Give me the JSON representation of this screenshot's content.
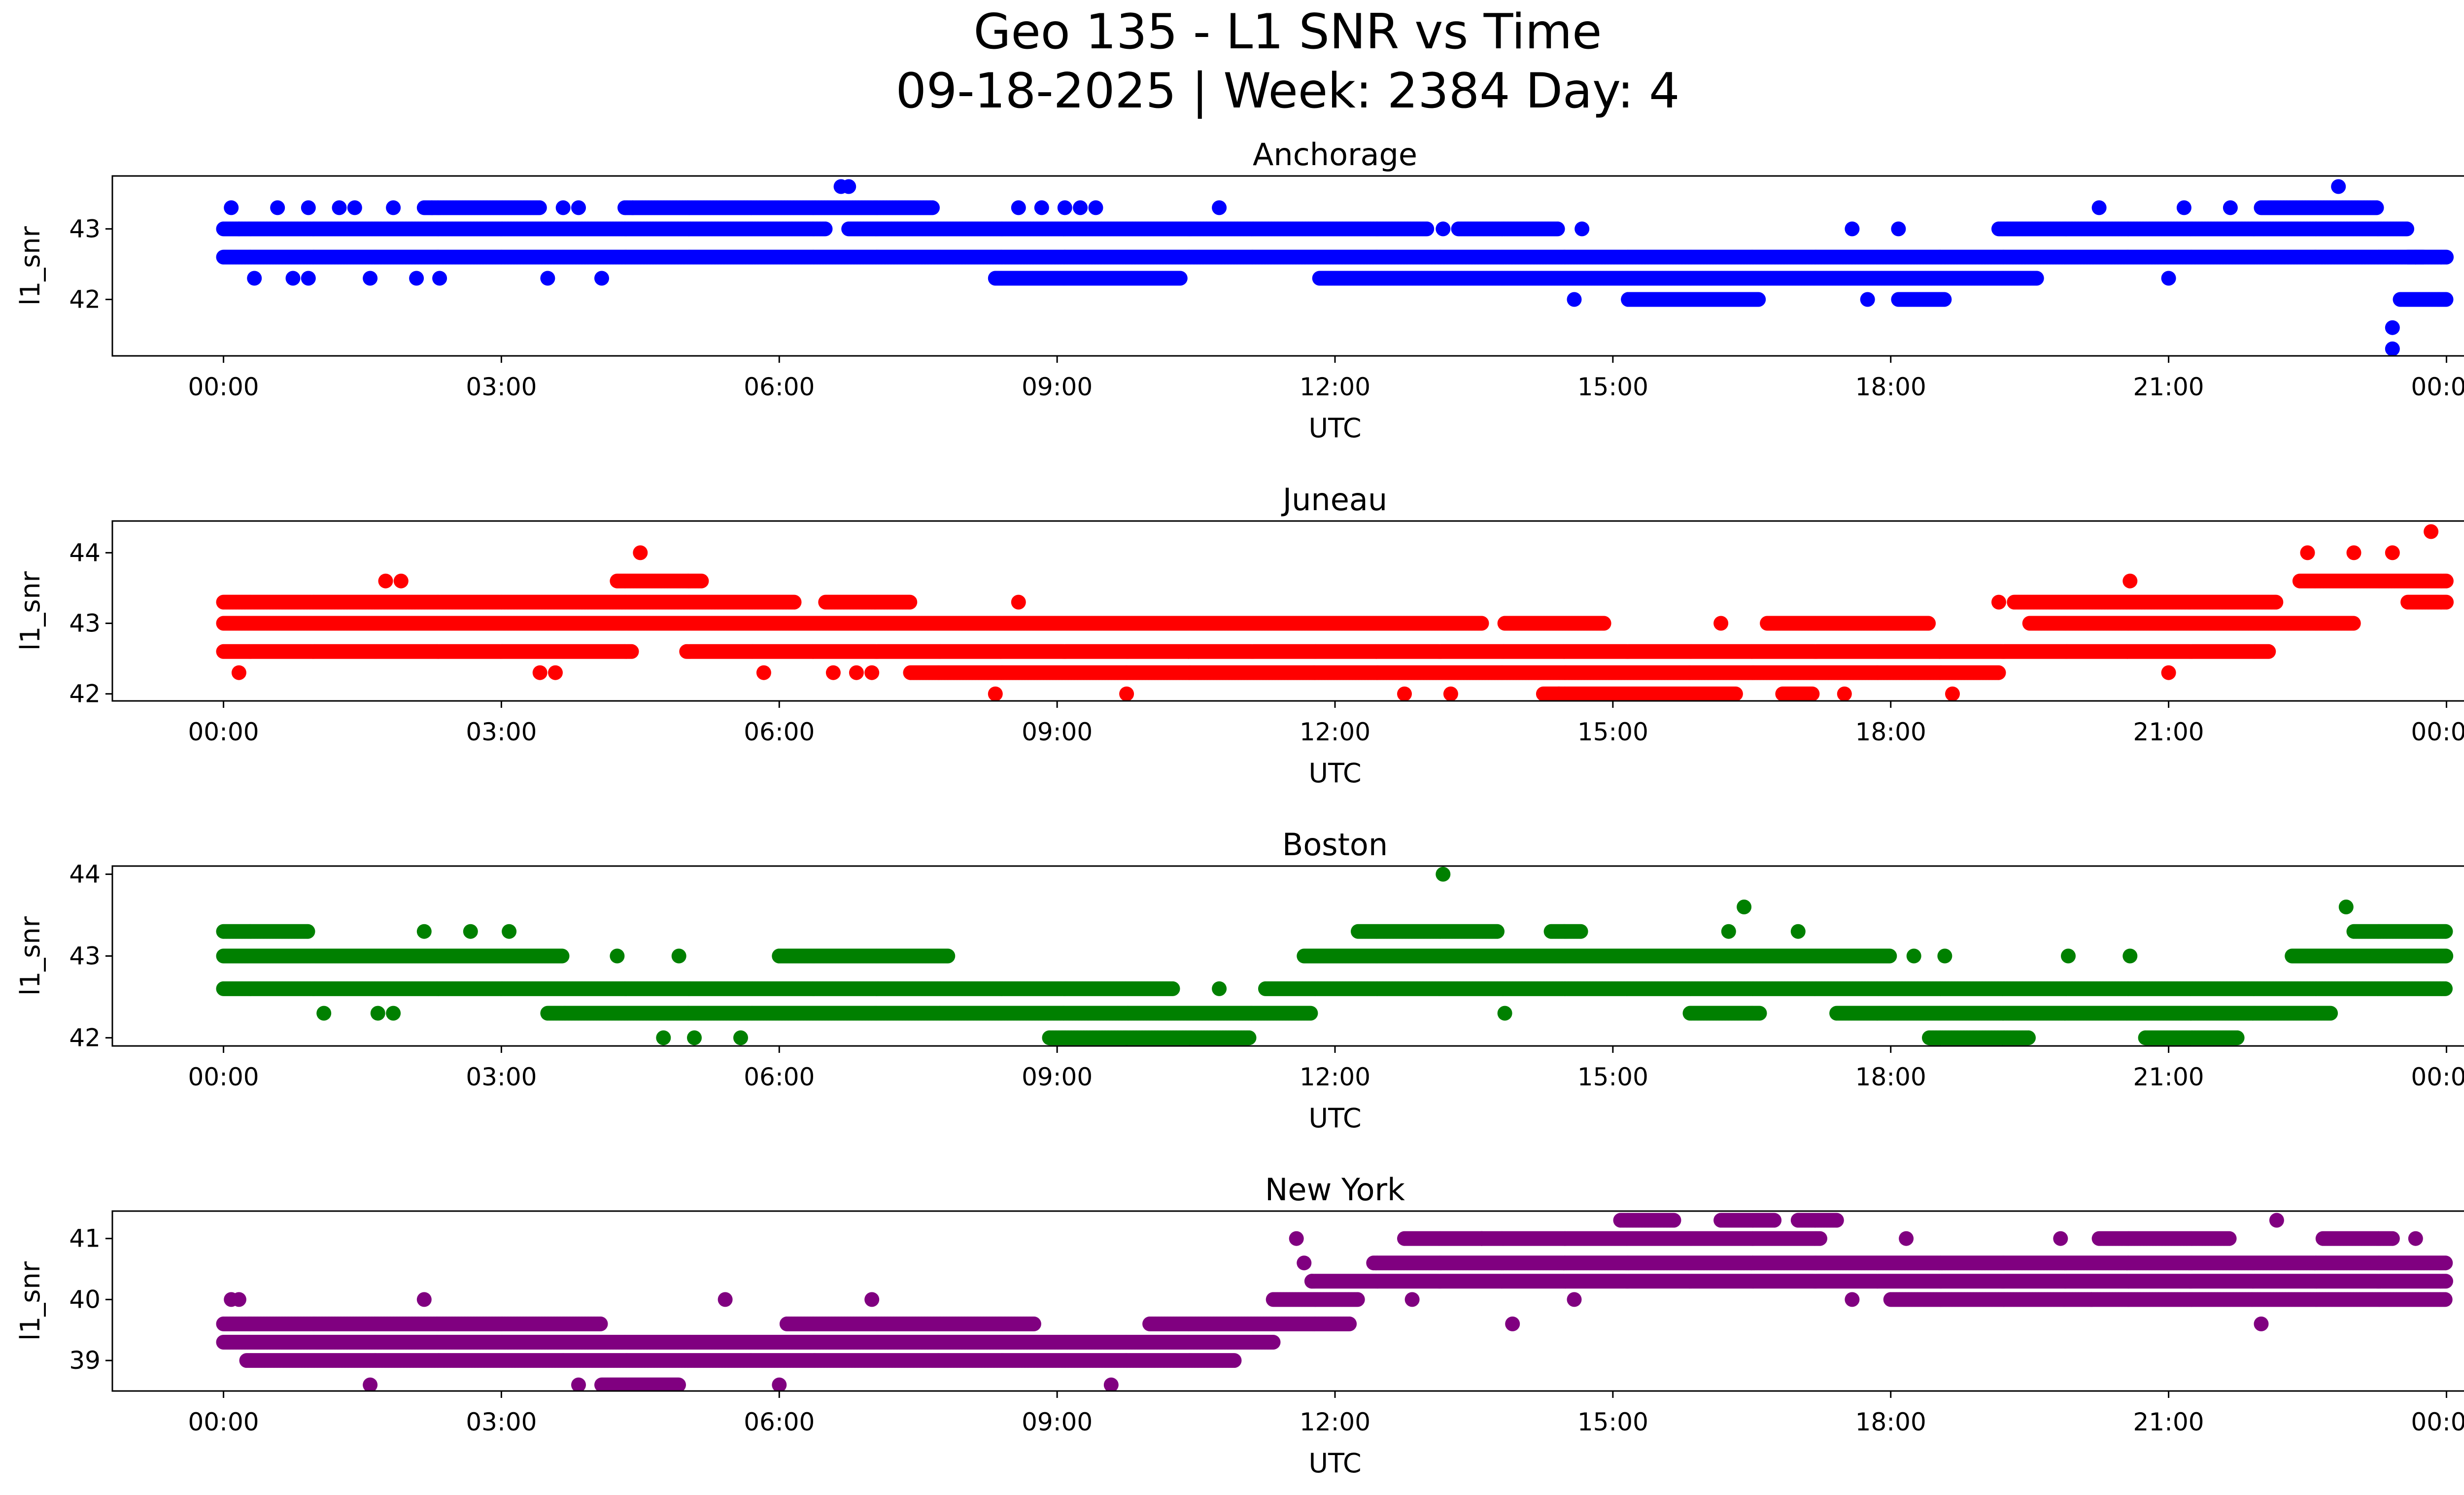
{
  "figure": {
    "title_line1": "Geo 135 - L1 SNR vs Time",
    "title_line2": "09-18-2025 | Week: 2384 Day: 4"
  },
  "chart_data": [
    {
      "type": "scatter",
      "title": "Anchorage",
      "xlabel": "UTC",
      "ylabel": "l1_snr",
      "color": "#0000ff",
      "xlim_hours": [
        -1.2,
        25.2
      ],
      "ylim": [
        41.2,
        43.75
      ],
      "yticks": [
        42,
        43
      ],
      "xticks": [
        "00:00",
        "03:00",
        "06:00",
        "09:00",
        "12:00",
        "15:00",
        "18:00",
        "21:00",
        "00:00"
      ],
      "points": [
        [
          "00:05",
          43.3
        ],
        [
          "00:10",
          43.0
        ],
        [
          "00:20",
          42.3
        ],
        [
          "00:35",
          43.3
        ],
        [
          "00:45",
          42.3
        ],
        [
          "00:55",
          43.3
        ],
        [
          "00:55",
          42.3
        ],
        [
          "01:15",
          43.3
        ],
        [
          "01:25",
          43.3
        ],
        [
          "01:35",
          42.3
        ],
        [
          "01:50",
          43.3
        ],
        [
          "02:05",
          42.3
        ],
        [
          "02:20",
          42.3
        ],
        [
          "02:15",
          43.3
        ],
        [
          "03:30",
          42.3
        ],
        [
          "03:40",
          43.3
        ],
        [
          "03:50",
          43.3
        ],
        [
          "04:05",
          42.3
        ],
        [
          "04:25",
          43.3
        ],
        [
          "06:40",
          43.6
        ],
        [
          "06:45",
          43.6
        ],
        [
          "08:35",
          43.3
        ],
        [
          "08:50",
          43.3
        ],
        [
          "09:05",
          43.3
        ],
        [
          "09:15",
          43.3
        ],
        [
          "09:25",
          43.3
        ],
        [
          "10:45",
          43.3
        ],
        [
          "13:10",
          43.0
        ],
        [
          "14:35",
          42.0
        ],
        [
          "14:40",
          43.0
        ],
        [
          "15:10",
          42.0
        ],
        [
          "17:35",
          43.0
        ],
        [
          "17:45",
          42.0
        ],
        [
          "18:05",
          43.0
        ],
        [
          "20:15",
          43.3
        ],
        [
          "21:00",
          42.3
        ],
        [
          "21:10",
          43.3
        ],
        [
          "21:40",
          43.3
        ],
        [
          "22:50",
          43.6
        ],
        [
          "23:25",
          41.6
        ],
        [
          "23:25",
          41.3
        ],
        [
          "23:40",
          42.6
        ],
        [
          "23:55",
          42.0
        ]
      ],
      "bands": [
        {
          "y": 43.0,
          "ranges": [
            [
              "00:00",
              "06:30"
            ],
            [
              "06:45",
              "13:00"
            ],
            [
              "13:20",
              "14:25"
            ],
            [
              "19:10",
              "23:35"
            ]
          ]
        },
        {
          "y": 42.6,
          "ranges": [
            [
              "00:00",
              "23:45"
            ],
            [
              "23:35",
              "00:00+"
            ]
          ]
        },
        {
          "y": 43.3,
          "ranges": [
            [
              "02:10",
              "03:25"
            ],
            [
              "04:20",
              "07:40"
            ],
            [
              "22:00",
              "23:15"
            ]
          ]
        },
        {
          "y": 42.3,
          "ranges": [
            [
              "08:20",
              "10:20"
            ],
            [
              "11:50",
              "19:35"
            ]
          ]
        },
        {
          "y": 42.0,
          "ranges": [
            [
              "15:10",
              "16:35"
            ],
            [
              "18:05",
              "18:35"
            ],
            [
              "23:30",
              "00:00+"
            ]
          ]
        }
      ]
    },
    {
      "type": "scatter",
      "title": "Juneau",
      "xlabel": "UTC",
      "ylabel": "l1_snr",
      "color": "#ff0000",
      "xlim_hours": [
        -1.2,
        25.2
      ],
      "ylim": [
        41.9,
        44.45
      ],
      "yticks": [
        42,
        43,
        44
      ],
      "xticks": [
        "00:00",
        "03:00",
        "06:00",
        "09:00",
        "12:00",
        "15:00",
        "18:00",
        "21:00",
        "00:00"
      ],
      "points": [
        [
          "00:10",
          42.3
        ],
        [
          "01:45",
          43.6
        ],
        [
          "01:55",
          43.6
        ],
        [
          "03:25",
          42.3
        ],
        [
          "03:35",
          42.3
        ],
        [
          "04:30",
          44.0
        ],
        [
          "05:50",
          42.3
        ],
        [
          "06:35",
          42.3
        ],
        [
          "06:50",
          42.3
        ],
        [
          "07:00",
          42.3
        ],
        [
          "08:20",
          42.0
        ],
        [
          "08:35",
          43.3
        ],
        [
          "09:45",
          42.0
        ],
        [
          "12:45",
          42.0
        ],
        [
          "13:15",
          42.0
        ],
        [
          "14:25",
          42.0
        ],
        [
          "16:10",
          43.0
        ],
        [
          "17:30",
          42.0
        ],
        [
          "18:40",
          42.0
        ],
        [
          "19:10",
          43.3
        ],
        [
          "20:35",
          43.6
        ],
        [
          "21:00",
          42.3
        ],
        [
          "22:30",
          44.0
        ],
        [
          "23:00",
          44.0
        ],
        [
          "23:25",
          44.0
        ],
        [
          "23:50",
          44.3
        ]
      ],
      "bands": [
        {
          "y": 43.3,
          "ranges": [
            [
              "00:00",
              "06:10"
            ],
            [
              "06:30",
              "07:25"
            ],
            [
              "19:20",
              "22:10"
            ],
            [
              "23:35",
              "00:00+"
            ]
          ]
        },
        {
          "y": 43.0,
          "ranges": [
            [
              "00:00",
              "13:35"
            ],
            [
              "13:50",
              "14:55"
            ],
            [
              "16:40",
              "18:25"
            ],
            [
              "19:30",
              "23:00"
            ]
          ]
        },
        {
          "y": 42.6,
          "ranges": [
            [
              "00:00",
              "04:25"
            ],
            [
              "05:00",
              "22:05"
            ]
          ]
        },
        {
          "y": 42.3,
          "ranges": [
            [
              "07:25",
              "19:10"
            ]
          ]
        },
        {
          "y": 43.6,
          "ranges": [
            [
              "04:15",
              "05:10"
            ],
            [
              "22:25",
              "00:00+"
            ]
          ]
        },
        {
          "y": 42.0,
          "ranges": [
            [
              "14:15",
              "16:20"
            ],
            [
              "16:50",
              "17:10"
            ]
          ]
        }
      ]
    },
    {
      "type": "scatter",
      "title": "Boston",
      "xlabel": "UTC",
      "ylabel": "l1_snr",
      "color": "#008000",
      "xlim_hours": [
        -1.2,
        25.2
      ],
      "ylim": [
        41.9,
        44.1
      ],
      "yticks": [
        42,
        43,
        44
      ],
      "xticks": [
        "00:00",
        "03:00",
        "06:00",
        "09:00",
        "12:00",
        "15:00",
        "18:00",
        "21:00",
        "00:00"
      ],
      "points": [
        [
          "01:05",
          42.3
        ],
        [
          "01:40",
          42.3
        ],
        [
          "01:50",
          42.3
        ],
        [
          "02:10",
          43.3
        ],
        [
          "02:40",
          43.3
        ],
        [
          "03:05",
          43.3
        ],
        [
          "04:15",
          43.0
        ],
        [
          "04:45",
          42.0
        ],
        [
          "04:55",
          43.0
        ],
        [
          "05:05",
          42.0
        ],
        [
          "05:35",
          42.0
        ],
        [
          "06:00",
          43.0
        ],
        [
          "10:45",
          42.6
        ],
        [
          "13:10",
          44.0
        ],
        [
          "13:50",
          42.3
        ],
        [
          "16:25",
          43.6
        ],
        [
          "16:15",
          43.3
        ],
        [
          "17:00",
          43.3
        ],
        [
          "18:15",
          43.0
        ],
        [
          "18:35",
          43.0
        ],
        [
          "19:55",
          43.0
        ],
        [
          "20:35",
          43.0
        ],
        [
          "22:55",
          43.6
        ]
      ],
      "bands": [
        {
          "y": 43.0,
          "ranges": [
            [
              "00:00",
              "03:40"
            ],
            [
              "06:00",
              "07:50"
            ],
            [
              "11:40",
              "18:00"
            ],
            [
              "22:20",
              "00:00+"
            ]
          ]
        },
        {
          "y": 42.6,
          "ranges": [
            [
              "00:00",
              "10:15"
            ],
            [
              "11:15",
              "00:00+"
            ]
          ]
        },
        {
          "y": 43.3,
          "ranges": [
            [
              "00:00",
              "00:55"
            ],
            [
              "12:15",
              "13:45"
            ],
            [
              "14:20",
              "14:40"
            ],
            [
              "23:00",
              "00:00+"
            ]
          ]
        },
        {
          "y": 42.3,
          "ranges": [
            [
              "03:30",
              "11:45"
            ],
            [
              "15:50",
              "16:35"
            ],
            [
              "17:25",
              "22:45"
            ]
          ]
        },
        {
          "y": 42.0,
          "ranges": [
            [
              "08:55",
              "11:05"
            ],
            [
              "18:25",
              "19:30"
            ],
            [
              "20:45",
              "21:45"
            ]
          ]
        }
      ]
    },
    {
      "type": "scatter",
      "title": "New York",
      "xlabel": "UTC",
      "ylabel": "l1_snr",
      "color": "#800080",
      "xlim_hours": [
        -1.2,
        25.2
      ],
      "ylim": [
        38.5,
        41.45
      ],
      "yticks": [
        39,
        40,
        41
      ],
      "xticks": [
        "00:00",
        "03:00",
        "06:00",
        "09:00",
        "12:00",
        "15:00",
        "18:00",
        "21:00",
        "00:00"
      ],
      "points": [
        [
          "00:05",
          40.0
        ],
        [
          "00:10",
          40.0
        ],
        [
          "01:35",
          38.6
        ],
        [
          "02:10",
          40.0
        ],
        [
          "03:50",
          38.6
        ],
        [
          "05:25",
          40.0
        ],
        [
          "06:00",
          38.6
        ],
        [
          "07:00",
          40.0
        ],
        [
          "09:35",
          38.6
        ],
        [
          "11:35",
          41.0
        ],
        [
          "11:40",
          40.6
        ],
        [
          "11:45",
          40.3
        ],
        [
          "12:50",
          40.0
        ],
        [
          "13:35",
          41.0
        ],
        [
          "13:55",
          39.6
        ],
        [
          "14:35",
          40.0
        ],
        [
          "17:35",
          40.0
        ],
        [
          "18:10",
          41.0
        ],
        [
          "19:50",
          41.0
        ],
        [
          "20:10",
          40.0
        ],
        [
          "22:00",
          39.6
        ],
        [
          "22:10",
          41.3
        ],
        [
          "23:40",
          41.0
        ]
      ],
      "bands": [
        {
          "y": 39.6,
          "ranges": [
            [
              "00:00",
              "04:05"
            ],
            [
              "06:05",
              "08:45"
            ],
            [
              "10:00",
              "12:10"
            ]
          ]
        },
        {
          "y": 39.3,
          "ranges": [
            [
              "00:00",
              "11:20"
            ]
          ]
        },
        {
          "y": 39.0,
          "ranges": [
            [
              "00:15",
              "10:55"
            ]
          ]
        },
        {
          "y": 38.6,
          "ranges": [
            [
              "04:05",
              "04:55"
            ]
          ]
        },
        {
          "y": 40.0,
          "ranges": [
            [
              "11:20",
              "12:15"
            ],
            [
              "18:00",
              "00:00+"
            ]
          ]
        },
        {
          "y": 40.3,
          "ranges": [
            [
              "11:45",
              "00:00+"
            ]
          ]
        },
        {
          "y": 40.6,
          "ranges": [
            [
              "12:25",
              "00:00+"
            ]
          ]
        },
        {
          "y": 41.0,
          "ranges": [
            [
              "12:45",
              "17:15"
            ],
            [
              "20:15",
              "21:40"
            ],
            [
              "22:40",
              "23:25"
            ]
          ]
        },
        {
          "y": 41.3,
          "ranges": [
            [
              "15:05",
              "15:40"
            ],
            [
              "16:10",
              "16:45"
            ],
            [
              "17:00",
              "17:25"
            ]
          ]
        }
      ]
    }
  ]
}
